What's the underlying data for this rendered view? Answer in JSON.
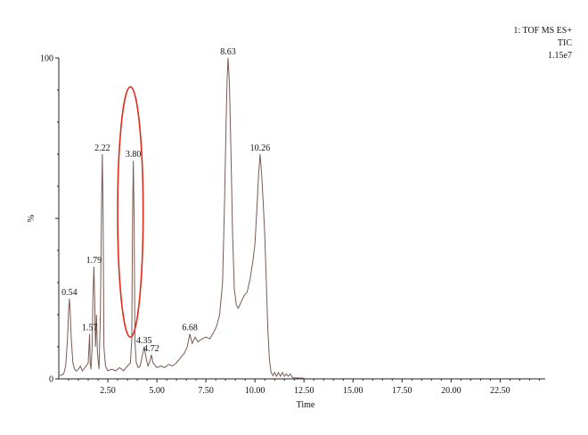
{
  "chart_data": {
    "type": "line",
    "header": [
      "1: TOF MS ES+",
      "TIC",
      "1.15e7"
    ],
    "xlabel": "Time",
    "ylabel": "%",
    "xlim": [
      0.0,
      24.8
    ],
    "ylim": [
      0,
      100
    ],
    "x_ticks": [
      2.5,
      5.0,
      7.5,
      10.0,
      12.5,
      15.0,
      17.5,
      20.0,
      22.5
    ],
    "x_tick_labels": [
      "2.50",
      "5.00",
      "7.50",
      "10.00",
      "12.50",
      "15.00",
      "17.50",
      "20.00",
      "22.50"
    ],
    "y_ticks": [
      0,
      100
    ],
    "y_tick_labels": [
      "0",
      "100"
    ],
    "line_color": "#7a5a52",
    "highlight_color": "#e02a1a",
    "highlight_center": {
      "x": 3.65,
      "y": 52
    },
    "highlight_radius": {
      "x": 0.65,
      "y": 39
    },
    "series": [
      {
        "points": [
          [
            0.05,
            1.0
          ],
          [
            0.25,
            1.5
          ],
          [
            0.35,
            4.0
          ],
          [
            0.44,
            12.0
          ],
          [
            0.5,
            21.0
          ],
          [
            0.54,
            25.0
          ],
          [
            0.58,
            21.0
          ],
          [
            0.64,
            12.0
          ],
          [
            0.72,
            5.0
          ],
          [
            0.8,
            3.0
          ],
          [
            0.9,
            2.4
          ],
          [
            1.0,
            3.0
          ],
          [
            1.1,
            4.0
          ],
          [
            1.2,
            2.5
          ],
          [
            1.3,
            3.2
          ],
          [
            1.4,
            4.0
          ],
          [
            1.5,
            5.0
          ],
          [
            1.57,
            14.0
          ],
          [
            1.6,
            5.0
          ],
          [
            1.64,
            3.0
          ],
          [
            1.7,
            10.0
          ],
          [
            1.74,
            25.0
          ],
          [
            1.79,
            35.0
          ],
          [
            1.83,
            25.0
          ],
          [
            1.87,
            10.0
          ],
          [
            1.92,
            20.0
          ],
          [
            1.97,
            8.0
          ],
          [
            2.05,
            3.0
          ],
          [
            2.12,
            20.0
          ],
          [
            2.18,
            55.0
          ],
          [
            2.22,
            70.0
          ],
          [
            2.26,
            50.0
          ],
          [
            2.3,
            10.0
          ],
          [
            2.38,
            4.0
          ],
          [
            2.5,
            2.5
          ],
          [
            2.7,
            3.0
          ],
          [
            2.9,
            2.5
          ],
          [
            3.1,
            3.5
          ],
          [
            3.3,
            2.5
          ],
          [
            3.5,
            4.0
          ],
          [
            3.65,
            5.0
          ],
          [
            3.72,
            12.0
          ],
          [
            3.76,
            50.0
          ],
          [
            3.8,
            68.0
          ],
          [
            3.84,
            50.0
          ],
          [
            3.88,
            12.0
          ],
          [
            3.95,
            5.0
          ],
          [
            4.05,
            3.5
          ],
          [
            4.15,
            4.0
          ],
          [
            4.25,
            7.0
          ],
          [
            4.35,
            10.0
          ],
          [
            4.45,
            6.5
          ],
          [
            4.55,
            4.0
          ],
          [
            4.65,
            5.5
          ],
          [
            4.72,
            7.5
          ],
          [
            4.8,
            5.0
          ],
          [
            5.0,
            3.5
          ],
          [
            5.2,
            4.0
          ],
          [
            5.4,
            3.5
          ],
          [
            5.6,
            4.5
          ],
          [
            5.8,
            4.0
          ],
          [
            6.0,
            5.0
          ],
          [
            6.2,
            6.5
          ],
          [
            6.4,
            8.0
          ],
          [
            6.55,
            10.0
          ],
          [
            6.68,
            14.0
          ],
          [
            6.8,
            11.0
          ],
          [
            6.95,
            13.0
          ],
          [
            7.1,
            11.5
          ],
          [
            7.3,
            12.5
          ],
          [
            7.5,
            13.0
          ],
          [
            7.7,
            12.5
          ],
          [
            7.9,
            14.5
          ],
          [
            8.05,
            16.5
          ],
          [
            8.2,
            20.0
          ],
          [
            8.35,
            30.0
          ],
          [
            8.45,
            55.0
          ],
          [
            8.53,
            80.0
          ],
          [
            8.58,
            93.0
          ],
          [
            8.63,
            100.0
          ],
          [
            8.7,
            92.0
          ],
          [
            8.78,
            70.0
          ],
          [
            8.86,
            45.0
          ],
          [
            8.95,
            28.0
          ],
          [
            9.05,
            23.0
          ],
          [
            9.15,
            22.0
          ],
          [
            9.3,
            24.0
          ],
          [
            9.45,
            26.0
          ],
          [
            9.6,
            27.0
          ],
          [
            9.75,
            31.0
          ],
          [
            9.9,
            37.0
          ],
          [
            10.0,
            42.0
          ],
          [
            10.1,
            53.0
          ],
          [
            10.18,
            63.0
          ],
          [
            10.26,
            70.0
          ],
          [
            10.34,
            64.0
          ],
          [
            10.42,
            55.0
          ],
          [
            10.5,
            45.0
          ],
          [
            10.58,
            30.0
          ],
          [
            10.66,
            15.0
          ],
          [
            10.74,
            6.0
          ],
          [
            10.82,
            2.0
          ],
          [
            10.92,
            1.0
          ],
          [
            11.0,
            2.0
          ],
          [
            11.1,
            0.8
          ],
          [
            11.2,
            2.0
          ],
          [
            11.3,
            0.8
          ],
          [
            11.4,
            2.0
          ],
          [
            11.5,
            0.8
          ],
          [
            11.6,
            1.5
          ],
          [
            11.7,
            0.8
          ],
          [
            11.8,
            1.5
          ],
          [
            11.9,
            0.5
          ],
          [
            12.0,
            0.3
          ],
          [
            12.5,
            0.2
          ]
        ]
      }
    ],
    "annotations": [
      {
        "text": "0.54",
        "x": 0.54,
        "y": 25.0
      },
      {
        "text": "1.57",
        "x": 1.57,
        "y": 14.0
      },
      {
        "text": "1.79",
        "x": 1.79,
        "y": 35.0
      },
      {
        "text": "2.22",
        "x": 2.22,
        "y": 70.0
      },
      {
        "text": "3.80",
        "x": 3.8,
        "y": 68.0
      },
      {
        "text": "4.35",
        "x": 4.35,
        "y": 10.0
      },
      {
        "text": "4.72",
        "x": 4.72,
        "y": 7.5
      },
      {
        "text": "6.68",
        "x": 6.68,
        "y": 14.0
      },
      {
        "text": "8.63",
        "x": 8.63,
        "y": 100.0
      },
      {
        "text": "10.26",
        "x": 10.26,
        "y": 70.0
      }
    ]
  }
}
